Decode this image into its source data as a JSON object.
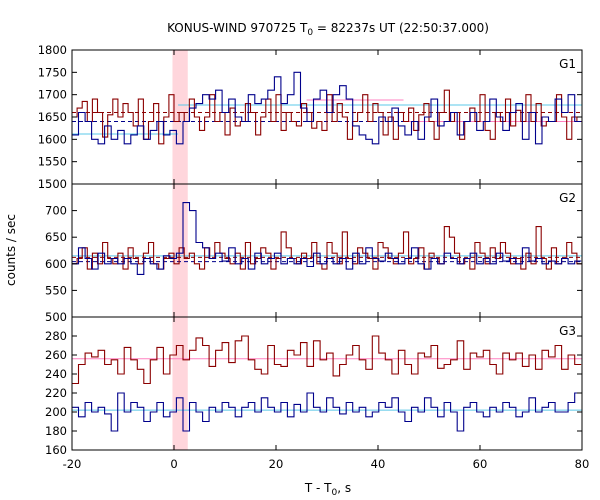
{
  "chart_data": {
    "type": "line",
    "title_main": "KONUS-WIND 970725 T",
    "title_sub": "0",
    "title_rest": " = 82237s UT (22:50:37.000)",
    "ylabel": "counts / sec",
    "xlabel_main": "T - T",
    "xlabel_sub": "0",
    "xlabel_rest": ", s",
    "xlim": [
      -20,
      80
    ],
    "xticks": [
      "-20",
      "0",
      "20",
      "40",
      "60",
      "80"
    ],
    "highlight_x": [
      -0.3,
      2.7
    ],
    "colors": {
      "red": "#8b0000",
      "blue": "#00008b",
      "cyan": "#5bc8e8",
      "pink": "#ff80c0",
      "band": "#ffd6dc"
    },
    "panels": [
      {
        "label": "G1",
        "ylim": [
          1500,
          1800
        ],
        "yticks": [
          "1500",
          "1550",
          "1600",
          "1650",
          "1700",
          "1750",
          "1800"
        ],
        "series": [
          {
            "color": "red",
            "x0": -20,
            "dx": 1,
            "values": [
              1650,
              1670,
              1685,
              1640,
              1690,
              1660,
              1605,
              1655,
              1690,
              1650,
              1680,
              1660,
              1630,
              1690,
              1600,
              1640,
              1680,
              1590,
              1650,
              1700,
              1640,
              1660,
              1640,
              1690,
              1650,
              1620,
              1650,
              1700,
              1640,
              1660,
              1610,
              1670,
              1630,
              1640,
              1680,
              1660,
              1610,
              1650,
              1690,
              1640,
              1700,
              1620,
              1660,
              1640,
              1630,
              1680,
              1660,
              1625,
              1640,
              1620,
              1700,
              1640,
              1680,
              1650,
              1600,
              1640,
              1660,
              1700,
              1640,
              1680,
              1660,
              1610,
              1650,
              1600,
              1660,
              1640,
              1670,
              1620,
              1655,
              1680,
              1640,
              1600,
              1660,
              1710,
              1640,
              1660,
              1600,
              1640,
              1670,
              1640,
              1700,
              1620,
              1600,
              1660,
              1640,
              1690,
              1630,
              1665,
              1640,
              1700,
              1640,
              1680,
              1630,
              1640,
              1640,
              1700,
              1650,
              1600,
              1650,
              1640
            ]
          },
          {
            "color": "blue",
            "x0": -20,
            "dx": 1.28,
            "values": [
              1610,
              1660,
              1640,
              1600,
              1590,
              1630,
              1600,
              1620,
              1590,
              1610,
              1630,
              1600,
              1620,
              1640,
              1610,
              1620,
              1590,
              1640,
              1670,
              1680,
              1700,
              1690,
              1710,
              1660,
              1690,
              1650,
              1640,
              1700,
              1680,
              1690,
              1710,
              1740,
              1680,
              1700,
              1750,
              1670,
              1640,
              1690,
              1710,
              1660,
              1700,
              1720,
              1690,
              1630,
              1610,
              1600,
              1590,
              1650,
              1640,
              1670,
              1630,
              1610,
              1640,
              1600,
              1650,
              1690,
              1630,
              1640,
              1660,
              1610,
              1640,
              1660,
              1620,
              1640,
              1690,
              1650,
              1620,
              1660,
              1680,
              1600,
              1660,
              1590,
              1650,
              1640,
              1690,
              1660,
              1700,
              1640
            ]
          }
        ],
        "bg_lines": [
          {
            "color": "blue",
            "value": 1640,
            "x_range": [
              -20,
              80
            ],
            "dashed": true
          },
          {
            "color": "red",
            "value": 1660,
            "x_range": [
              -20,
              80
            ],
            "dashed": true
          },
          {
            "color": "cyan",
            "value": 1612,
            "x_range": [
              -20,
              0.8
            ]
          },
          {
            "color": "cyan",
            "value": 1677,
            "x_range": [
              0.8,
              80
            ]
          },
          {
            "color": "pink",
            "value": 1688,
            "x_range": [
              26,
              45
            ]
          },
          {
            "color": "pink",
            "value": 1640,
            "x_range": [
              45,
              80
            ]
          }
        ]
      },
      {
        "label": "G2",
        "ylim": [
          500,
          750
        ],
        "yticks": [
          "500",
          "550",
          "600",
          "650",
          "700"
        ],
        "series": [
          {
            "color": "red",
            "x0": -20,
            "dx": 1,
            "values": [
              600,
              610,
              630,
              590,
              620,
              600,
              640,
              610,
              600,
              620,
              590,
              630,
              610,
              600,
              620,
              640,
              600,
              590,
              610,
              620,
              600,
              630,
              610,
              620,
              600,
              590,
              630,
              610,
              640,
              620,
              610,
              600,
              620,
              590,
              640,
              600,
              610,
              630,
              620,
              590,
              610,
              660,
              630,
              610,
              600,
              620,
              610,
              640,
              600,
              590,
              640,
              620,
              600,
              660,
              610,
              600,
              630,
              620,
              610,
              590,
              640,
              630,
              610,
              600,
              620,
              660,
              600,
              610,
              630,
              590,
              620,
              610,
              600,
              670,
              650,
              620,
              600,
              610,
              590,
              640,
              620,
              600,
              630,
              610,
              640,
              620,
              600,
              610,
              590,
              620,
              600,
              670,
              610,
              590,
              630,
              600,
              610,
              640,
              620,
              600
            ]
          },
          {
            "color": "blue",
            "x0": -20,
            "dx": 1.28,
            "values": [
              600,
              630,
              610,
              590,
              620,
              600,
              610,
              600,
              610,
              600,
              580,
              610,
              600,
              590,
              615,
              610,
              620,
              715,
              700,
              640,
              630,
              610,
              620,
              605,
              630,
              600,
              610,
              590,
              620,
              600,
              610,
              620,
              600,
              610,
              600,
              610,
              595,
              620,
              600,
              610,
              600,
              610,
              590,
              620,
              600,
              630,
              610,
              605,
              620,
              610,
              600,
              610,
              630,
              600,
              590,
              610,
              600,
              620,
              610,
              600,
              610,
              620,
              600,
              610,
              600,
              620,
              605,
              610,
              600,
              630,
              605,
              610,
              600,
              605,
              600,
              610,
              600,
              605
            ]
          }
        ],
        "bg_lines": [
          {
            "color": "blue",
            "value": 604,
            "x_range": [
              -20,
              80
            ],
            "dashed": true
          },
          {
            "color": "red",
            "value": 612,
            "x_range": [
              -20,
              80
            ],
            "dashed": true
          },
          {
            "color": "cyan",
            "value": 615,
            "x_range": [
              -20,
              80
            ]
          }
        ]
      },
      {
        "label": "G3",
        "ylim": [
          160,
          300
        ],
        "yticks": [
          "160",
          "180",
          "200",
          "220",
          "240",
          "260",
          "280"
        ],
        "series": [
          {
            "color": "red",
            "x0": -20,
            "dx": 1.28,
            "values": [
              230,
              250,
              262,
              258,
              265,
              250,
              255,
              240,
              268,
              255,
              245,
              230,
              255,
              268,
              240,
              260,
              270,
              255,
              265,
              278,
              270,
              248,
              265,
              273,
              252,
              275,
              280,
              255,
              245,
              240,
              270,
              250,
              248,
              265,
              260,
              273,
              248,
              275,
              255,
              262,
              238,
              250,
              260,
              270,
              255,
              245,
              280,
              262,
              255,
              240,
              265,
              250,
              240,
              262,
              258,
              270,
              246,
              250,
              255,
              275,
              245,
              262,
              258,
              265,
              250,
              240,
              262,
              255,
              262,
              248,
              260,
              245,
              265,
              258,
              270,
              245,
              260,
              250
            ]
          },
          {
            "color": "blue",
            "x0": -20,
            "dx": 1.28,
            "values": [
              205,
              195,
              210,
              200,
              205,
              198,
              180,
              220,
              200,
              210,
              205,
              190,
              200,
              210,
              195,
              200,
              215,
              180,
              210,
              200,
              190,
              205,
              200,
              210,
              205,
              195,
              205,
              210,
              200,
              215,
              205,
              200,
              210,
              195,
              208,
              200,
              220,
              205,
              200,
              215,
              205,
              198,
              210,
              200,
              205,
              195,
              200,
              210,
              205,
              215,
              200,
              190,
              205,
              200,
              215,
              205,
              195,
              210,
              200,
              180,
              205,
              210,
              200,
              195,
              205,
              200,
              210,
              205,
              195,
              200,
              215,
              200,
              205,
              210,
              200,
              200,
              210,
              220
            ]
          }
        ],
        "bg_lines": [
          {
            "color": "cyan",
            "value": 202,
            "x_range": [
              -20,
              80
            ]
          },
          {
            "color": "pink",
            "value": 256,
            "x_range": [
              -20,
              80
            ]
          }
        ]
      }
    ]
  }
}
